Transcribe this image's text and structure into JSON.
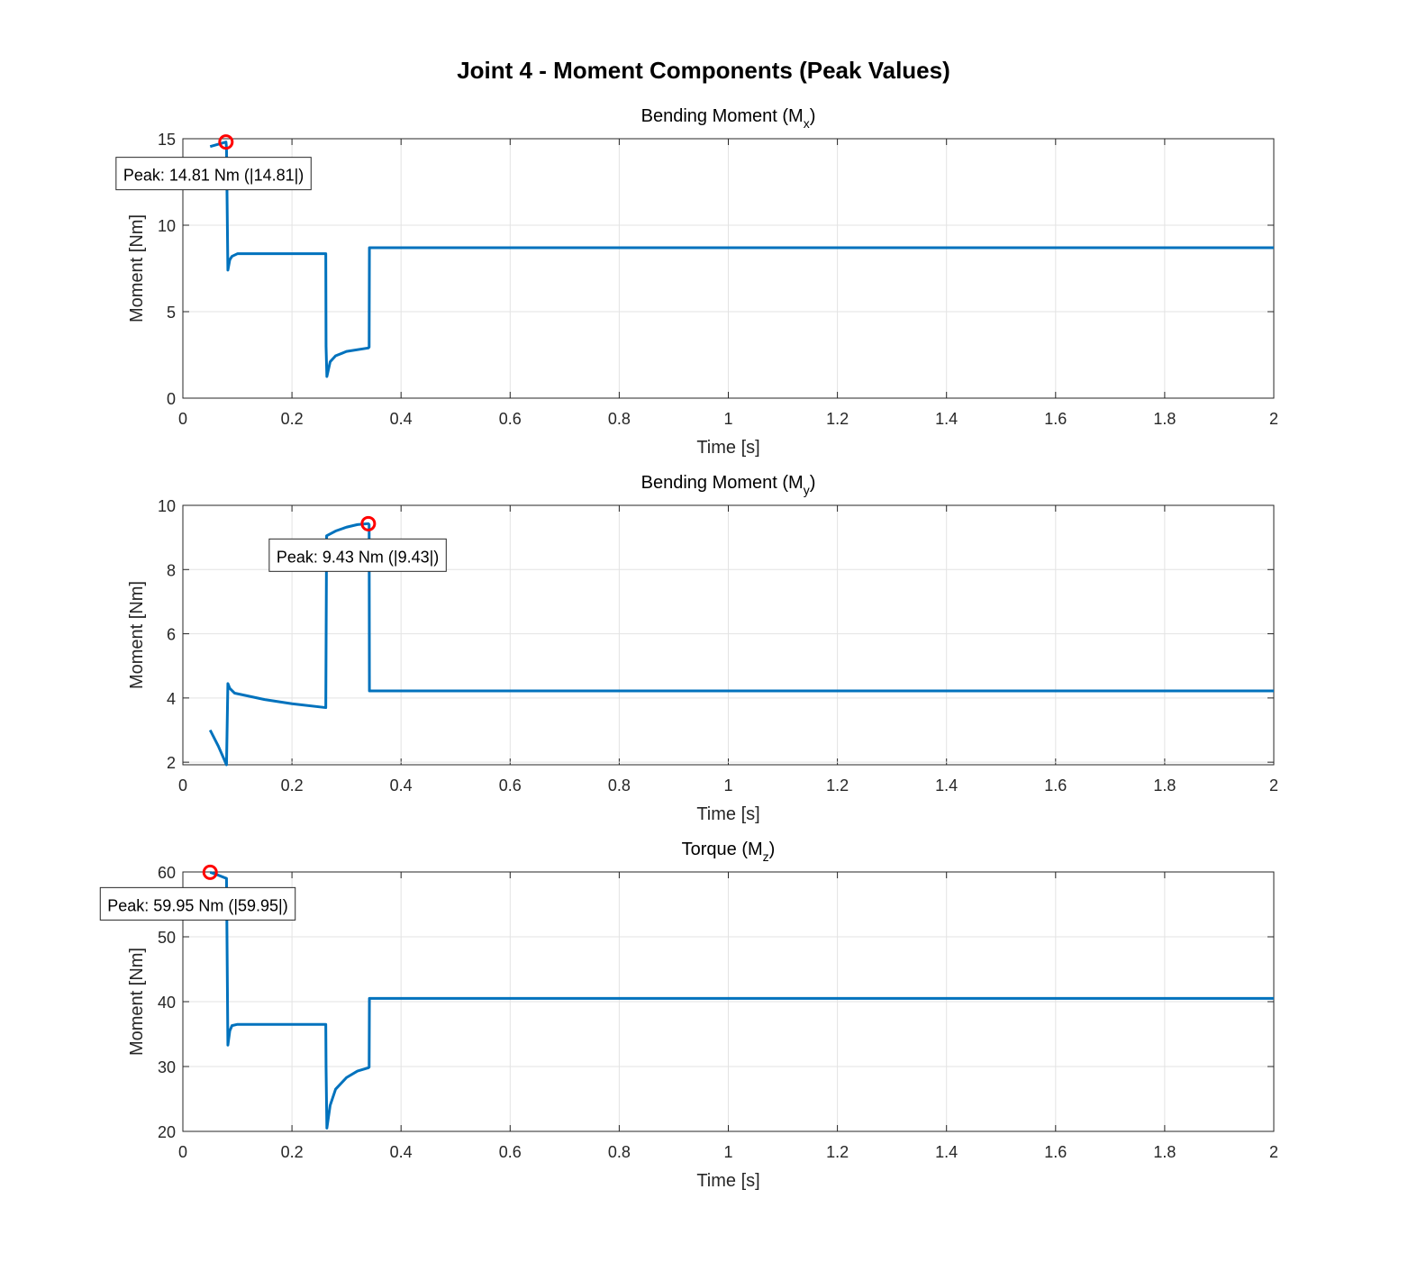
{
  "chart_data": [
    {
      "type": "line",
      "title": "Bending Moment (M",
      "title_sub": "x",
      "xlabel": "Time [s]",
      "ylabel": "Moment [Nm]",
      "xlim": [
        0,
        2
      ],
      "ylim": [
        0,
        15
      ],
      "yticks": [
        0,
        5,
        10,
        15
      ],
      "grid": true,
      "series": [
        {
          "name": "Mx",
          "color": "#0072BD",
          "x": [
            0.05,
            0.079,
            0.08,
            0.0825,
            0.086,
            0.09,
            0.1,
            0.262,
            0.2625,
            0.264,
            0.27,
            0.28,
            0.3,
            0.34,
            0.3415,
            0.342,
            2
          ],
          "y": [
            14.55,
            14.81,
            14.5,
            7.4,
            8.0,
            8.2,
            8.35,
            8.35,
            3,
            1.25,
            2.1,
            2.45,
            2.7,
            2.9,
            2.95,
            8.7,
            8.7
          ]
        }
      ],
      "peak": {
        "x": 0.079,
        "y": 14.81,
        "label": "Peak: 14.81 Nm (|14.81|)"
      }
    },
    {
      "type": "line",
      "title": "Bending Moment (M",
      "title_sub": "y",
      "xlabel": "Time [s]",
      "ylabel": "Moment [Nm]",
      "xlim": [
        0,
        2
      ],
      "ylim": [
        1.92,
        10
      ],
      "yticks": [
        2,
        4,
        6,
        8,
        10
      ],
      "grid": true,
      "series": [
        {
          "name": "My",
          "color": "#0072BD",
          "x": [
            0.05,
            0.065,
            0.08,
            0.0825,
            0.086,
            0.095,
            0.15,
            0.2,
            0.262,
            0.2635,
            0.28,
            0.3,
            0.32,
            0.34,
            0.3415,
            0.342,
            2
          ],
          "y": [
            3.0,
            2.5,
            1.92,
            4.45,
            4.3,
            4.15,
            3.95,
            3.82,
            3.7,
            9.05,
            9.2,
            9.32,
            9.4,
            9.43,
            9.4,
            4.22,
            4.22
          ]
        }
      ],
      "peak": {
        "x": 0.34,
        "y": 9.43,
        "label": "Peak: 9.43 Nm (|9.43|)"
      }
    },
    {
      "type": "line",
      "title": "Torque (M",
      "title_sub": "z",
      "xlabel": "Time [s]",
      "ylabel": "Moment [Nm]",
      "xlim": [
        0,
        2
      ],
      "ylim": [
        20,
        60
      ],
      "yticks": [
        20,
        30,
        40,
        50,
        60
      ],
      "grid": true,
      "series": [
        {
          "name": "Mz",
          "color": "#0072BD",
          "x": [
            0.05,
            0.065,
            0.08,
            0.0825,
            0.086,
            0.09,
            0.1,
            0.262,
            0.2625,
            0.264,
            0.27,
            0.28,
            0.3,
            0.32,
            0.34,
            0.3415,
            0.342,
            2
          ],
          "y": [
            59.95,
            59.5,
            59,
            33.3,
            35.5,
            36.3,
            36.5,
            36.5,
            30,
            20.5,
            24,
            26.5,
            28.3,
            29.3,
            29.8,
            29.9,
            40.5,
            40.5
          ]
        }
      ],
      "peak": {
        "x": 0.05,
        "y": 59.95,
        "label": "Peak: 59.95 Nm (|59.95|)"
      }
    }
  ],
  "figure_title": "Joint 4 - Moment Components (Peak Values)",
  "xticks": [
    0,
    0.2,
    0.4,
    0.6,
    0.8,
    1,
    1.2,
    1.4,
    1.6,
    1.8,
    2
  ],
  "xtick_labels": [
    "0",
    "0.2",
    "0.4",
    "0.6",
    "0.8",
    "1",
    "1.2",
    "1.4",
    "1.6",
    "1.8",
    "2"
  ]
}
